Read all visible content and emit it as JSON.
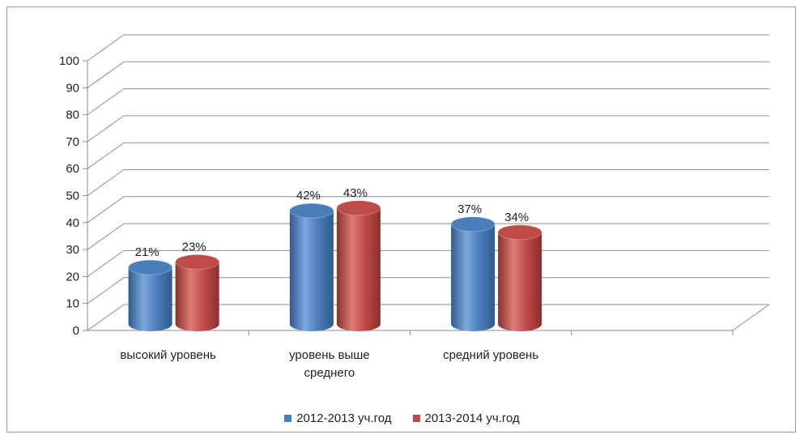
{
  "chart_data": {
    "type": "bar",
    "style": "3d-cylinder",
    "categories": [
      [
        "высокий уровень"
      ],
      [
        "уровень выше",
        "среднего"
      ],
      [
        "средний уровень"
      ]
    ],
    "series": [
      {
        "name": "2012-2013 уч.год",
        "color": "#4a7ebb",
        "values": [
          21,
          42,
          37
        ],
        "labels": [
          "21%",
          "42%",
          "37%"
        ]
      },
      {
        "name": "2013-2014 уч.год",
        "color": "#be4b48",
        "values": [
          23,
          43,
          34
        ],
        "labels": [
          "23%",
          "43%",
          "34%"
        ]
      }
    ],
    "ylim": [
      0,
      100
    ],
    "yticks": [
      "0",
      "10",
      "20",
      "30",
      "40",
      "50",
      "60",
      "70",
      "80",
      "90",
      "100"
    ],
    "grid": true,
    "legend_position": "bottom"
  }
}
